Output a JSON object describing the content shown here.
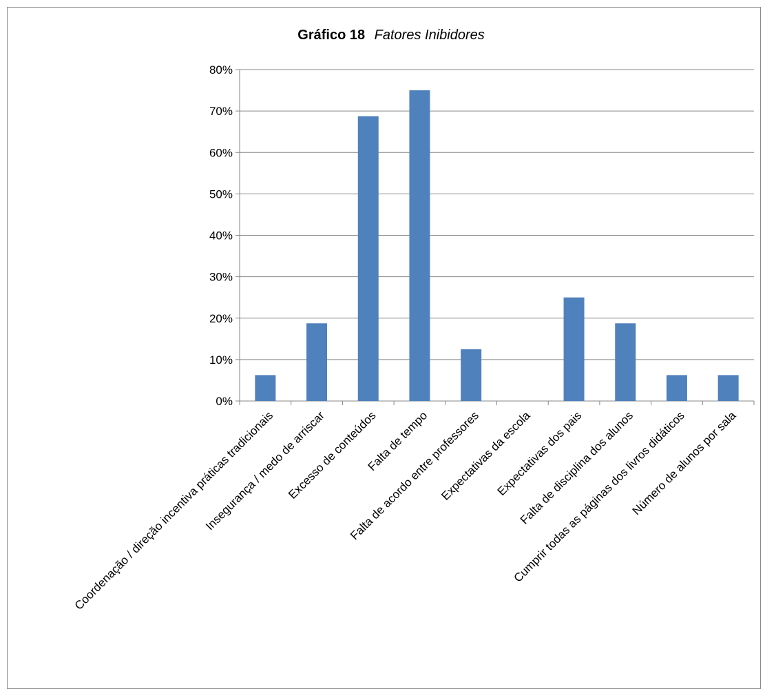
{
  "chart_data": {
    "type": "bar",
    "title": "Gráfico 18",
    "subtitle": "Fatores Inibidores",
    "xlabel": "",
    "ylabel": "",
    "categories": [
      "Coordenação / direção incentiva práticas tradicionais",
      "Insegurança / medo de arriscar",
      "Excesso de conteúdos",
      "Falta de tempo",
      "Falta de acordo entre professores",
      "Expectativas da escola",
      "Expectativas dos pais",
      "Falta de disciplina dos alunos",
      "Cumprir todas as páginas dos livros didáticos",
      "Número de alunos por sala"
    ],
    "values": [
      0.0625,
      0.1875,
      0.6875,
      0.75,
      0.125,
      0.0,
      0.25,
      0.1875,
      0.0625,
      0.0625
    ],
    "ylim": [
      0,
      0.8
    ],
    "yticks": [
      "0%",
      "10%",
      "20%",
      "30%",
      "40%",
      "50%",
      "60%",
      "70%",
      "80%"
    ],
    "grid": true,
    "legend": "none",
    "bar_color": "#4f81bd",
    "gridline_color": "#878787"
  }
}
